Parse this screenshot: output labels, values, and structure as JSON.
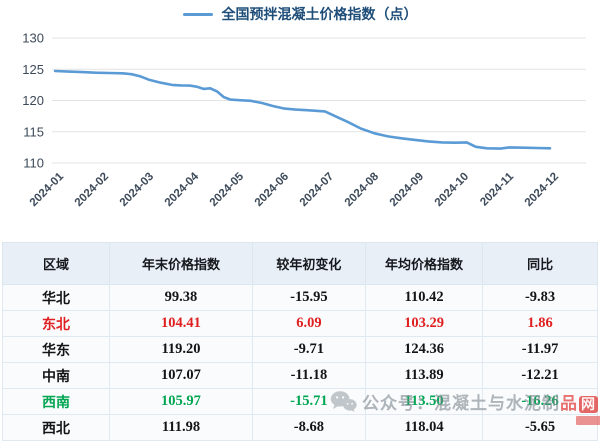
{
  "chart": {
    "legend_label": "全国预拌混凝土价格指数（点）",
    "line_color": "#5b9bd5",
    "title_color": "#1f4e79",
    "axis_label_color": "#3d4a59",
    "grid_color": "#e3e3e3"
  },
  "chart_data": {
    "type": "line",
    "title": "全国预拌混凝土价格指数（点）",
    "legend_position": "top-center",
    "grid": "horizontal",
    "x_tick_labels": [
      "2024-01",
      "2024-02",
      "2024-03",
      "2024-04",
      "2024-05",
      "2024-06",
      "2024-07",
      "2024-08",
      "2024-09",
      "2024-10",
      "2024-11",
      "2024-12"
    ],
    "y_ticks": [
      110,
      115,
      120,
      125,
      130
    ],
    "ylim": [
      110,
      130
    ],
    "monthly_values_at_ticks": [
      124.7,
      124.45,
      123.5,
      122.4,
      120.1,
      118.8,
      118.25,
      115.0,
      113.7,
      113.3,
      112.3,
      112.35
    ],
    "series": [
      {
        "name": "全国预拌混凝土价格指数（点）",
        "points": [
          [
            1.0,
            124.72
          ],
          [
            1.3,
            124.62
          ],
          [
            1.6,
            124.55
          ],
          [
            1.9,
            124.45
          ],
          [
            2.2,
            124.4
          ],
          [
            2.5,
            124.35
          ],
          [
            2.7,
            124.2
          ],
          [
            2.9,
            123.85
          ],
          [
            3.1,
            123.3
          ],
          [
            3.35,
            122.85
          ],
          [
            3.6,
            122.5
          ],
          [
            3.8,
            122.42
          ],
          [
            4.0,
            122.38
          ],
          [
            4.15,
            122.2
          ],
          [
            4.3,
            121.85
          ],
          [
            4.45,
            121.95
          ],
          [
            4.6,
            121.45
          ],
          [
            4.75,
            120.55
          ],
          [
            4.9,
            120.15
          ],
          [
            5.1,
            120.05
          ],
          [
            5.35,
            119.95
          ],
          [
            5.6,
            119.6
          ],
          [
            5.85,
            119.1
          ],
          [
            6.1,
            118.7
          ],
          [
            6.35,
            118.55
          ],
          [
            6.6,
            118.45
          ],
          [
            7.0,
            118.25
          ],
          [
            7.25,
            117.4
          ],
          [
            7.5,
            116.6
          ],
          [
            7.8,
            115.5
          ],
          [
            8.1,
            114.75
          ],
          [
            8.4,
            114.25
          ],
          [
            8.7,
            113.95
          ],
          [
            9.0,
            113.7
          ],
          [
            9.3,
            113.45
          ],
          [
            9.6,
            113.3
          ],
          [
            9.9,
            113.25
          ],
          [
            10.15,
            113.3
          ],
          [
            10.35,
            112.6
          ],
          [
            10.6,
            112.35
          ],
          [
            10.9,
            112.3
          ],
          [
            11.1,
            112.5
          ],
          [
            11.4,
            112.45
          ],
          [
            11.7,
            112.4
          ],
          [
            12.0,
            112.35
          ]
        ]
      }
    ]
  },
  "table": {
    "headers": [
      "区域",
      "年末价格指数",
      "较年初变化",
      "年均价格指数",
      "同比"
    ],
    "rows": [
      {
        "region": "华北",
        "values": [
          "99.38",
          "-15.95",
          "110.42",
          "-9.83"
        ],
        "color": "default"
      },
      {
        "region": "东北",
        "values": [
          "104.41",
          "6.09",
          "103.29",
          "1.86"
        ],
        "color": "red"
      },
      {
        "region": "华东",
        "values": [
          "119.20",
          "-9.71",
          "124.36",
          "-11.97"
        ],
        "color": "default"
      },
      {
        "region": "中南",
        "values": [
          "107.07",
          "-11.18",
          "113.89",
          "-12.21"
        ],
        "color": "default"
      },
      {
        "region": "西南",
        "values": [
          "105.97",
          "-15.71",
          "113.50",
          "-16.26"
        ],
        "color": "green"
      },
      {
        "region": "西北",
        "values": [
          "111.98",
          "-8.68",
          "118.04",
          "-5.65"
        ],
        "color": "default"
      }
    ],
    "text_colors": {
      "default": "#141414",
      "red": "#e02020",
      "green": "#00a651"
    }
  },
  "watermark": {
    "icon": "wechat-icon",
    "text_gray": "公众号：混凝土与水泥制",
    "text_red": "品",
    "badge": "网"
  }
}
